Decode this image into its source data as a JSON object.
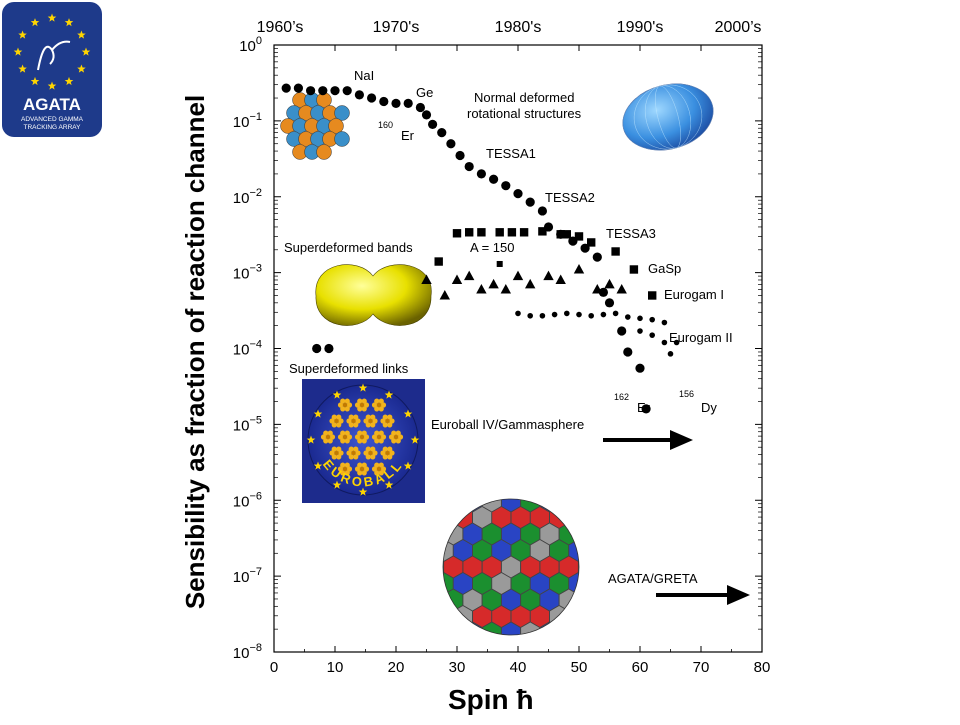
{
  "logo": {
    "title": "AGATA",
    "subtitle_line1": "ADVANCED GAMMA",
    "subtitle_line2": "TRACKING ARRAY",
    "bg": "#1e3a8a",
    "star_color": "#ffd500"
  },
  "chart_data": {
    "type": "scatter",
    "ylabel": "Sensibility as fraction of reaction channel",
    "xlabel": "Spin ħ",
    "xlim": [
      0,
      80
    ],
    "ylim": [
      1e-08,
      1
    ],
    "yscale": "log",
    "x_ticks": [
      "0",
      "10",
      "20",
      "30",
      "40",
      "50",
      "60",
      "70",
      "80"
    ],
    "y_ticks": [
      {
        "base": "10",
        "exp": "0"
      },
      {
        "base": "10",
        "exp": "−1"
      },
      {
        "base": "10",
        "exp": "−2"
      },
      {
        "base": "10",
        "exp": "−3"
      },
      {
        "base": "10",
        "exp": "−4"
      },
      {
        "base": "10",
        "exp": "−5"
      },
      {
        "base": "10",
        "exp": "−6"
      },
      {
        "base": "10",
        "exp": "−7"
      },
      {
        "base": "10",
        "exp": "−8"
      }
    ],
    "decades": [
      "1960’s",
      "1970's",
      "1980's",
      "1990's",
      "2000’s"
    ],
    "series": [
      {
        "marker": "circle",
        "points": [
          [
            2,
            0.27
          ],
          [
            4,
            0.27
          ],
          [
            6,
            0.25
          ],
          [
            8,
            0.25
          ],
          [
            10,
            0.25
          ],
          [
            12,
            0.25
          ],
          [
            14,
            0.22
          ],
          [
            16,
            0.2
          ],
          [
            18,
            0.18
          ],
          [
            20,
            0.17
          ],
          [
            22,
            0.17
          ],
          [
            24,
            0.15
          ],
          [
            25,
            0.12
          ],
          [
            26,
            0.09
          ],
          [
            27.5,
            0.07
          ],
          [
            29,
            0.05
          ],
          [
            30.5,
            0.035
          ],
          [
            32,
            0.025
          ],
          [
            34,
            0.02
          ],
          [
            36,
            0.017
          ],
          [
            38,
            0.014
          ],
          [
            40,
            0.011
          ],
          [
            42,
            0.0085
          ],
          [
            44,
            0.0065
          ]
        ]
      },
      {
        "marker": "circle",
        "points": [
          [
            45,
            0.004
          ],
          [
            47,
            0.0032
          ],
          [
            49,
            0.0026
          ],
          [
            51,
            0.0021
          ],
          [
            53,
            0.0016
          ],
          [
            54,
            0.00055
          ],
          [
            55,
            0.0004
          ],
          [
            57,
            0.00017
          ],
          [
            58,
            9e-05
          ],
          [
            60,
            5.5e-05
          ],
          [
            61,
            1.6e-05
          ]
        ]
      },
      {
        "marker": "square",
        "points": [
          [
            27,
            0.0014
          ],
          [
            30,
            0.0033
          ],
          [
            32,
            0.0034
          ],
          [
            34,
            0.0034
          ],
          [
            37,
            0.0034
          ],
          [
            39,
            0.0034
          ],
          [
            41,
            0.0034
          ],
          [
            44,
            0.0035
          ],
          [
            47,
            0.0032
          ],
          [
            48,
            0.0032
          ],
          [
            50,
            0.003
          ],
          [
            52,
            0.0025
          ],
          [
            56,
            0.0019
          ],
          [
            59,
            0.0011
          ],
          [
            62,
            0.0005
          ]
        ]
      },
      {
        "marker": "triangle",
        "points": [
          [
            25,
            0.0008
          ],
          [
            28,
            0.0005
          ],
          [
            30,
            0.0008
          ],
          [
            32,
            0.0009
          ],
          [
            34,
            0.0006
          ],
          [
            36,
            0.0007
          ],
          [
            38,
            0.0006
          ],
          [
            40,
            0.0009
          ],
          [
            42,
            0.0007
          ],
          [
            45,
            0.0009
          ],
          [
            47,
            0.0008
          ],
          [
            50,
            0.0011
          ],
          [
            53,
            0.0006
          ],
          [
            55,
            0.0007
          ],
          [
            57,
            0.0006
          ]
        ]
      },
      {
        "marker": "square-small",
        "points": [
          [
            37,
            0.0013
          ]
        ]
      },
      {
        "marker": "dot",
        "points": [
          [
            40,
            0.00029
          ],
          [
            42,
            0.00027
          ],
          [
            44,
            0.00027
          ],
          [
            46,
            0.00028
          ],
          [
            48,
            0.00029
          ],
          [
            50,
            0.00028
          ],
          [
            52,
            0.00027
          ],
          [
            54,
            0.00028
          ],
          [
            56,
            0.00029
          ],
          [
            58,
            0.00026
          ],
          [
            60,
            0.00025
          ],
          [
            62,
            0.00024
          ],
          [
            64,
            0.00022
          ],
          [
            66,
            0.00012
          ]
        ]
      },
      {
        "marker": "dot",
        "points": [
          [
            60,
            0.00017
          ],
          [
            62,
            0.00015
          ],
          [
            64,
            0.00012
          ],
          [
            65,
            8.5e-05
          ]
        ]
      },
      {
        "marker": "circle",
        "points": [
          [
            7,
            0.0001
          ],
          [
            9,
            0.0001
          ]
        ]
      }
    ],
    "annotations": {
      "nai": "NaI",
      "ge": "Ge",
      "er160": {
        "sup": "160",
        "main": "Er"
      },
      "tessa1": "TESSA1",
      "tessa2": "TESSA2",
      "tessa3": "TESSA3",
      "gasp": "GaSp",
      "eurogam1": "Eurogam I",
      "eurogam2": "Eurogam II",
      "er162": {
        "sup": "162",
        "main": "Er"
      },
      "dy156": {
        "sup": "156",
        "main": "Dy"
      },
      "normal_line1": "Normal deformed",
      "normal_line2": "rotational structures",
      "sd_bands": "Superdeformed  bands",
      "a150": "A  =  150",
      "sd_links": "Superdeformed  links",
      "euroball_gs": "Euroball IV/Gammasphere",
      "agata_greta": "AGATA/GRETA",
      "euroball_logo": "EUROBALL"
    }
  }
}
